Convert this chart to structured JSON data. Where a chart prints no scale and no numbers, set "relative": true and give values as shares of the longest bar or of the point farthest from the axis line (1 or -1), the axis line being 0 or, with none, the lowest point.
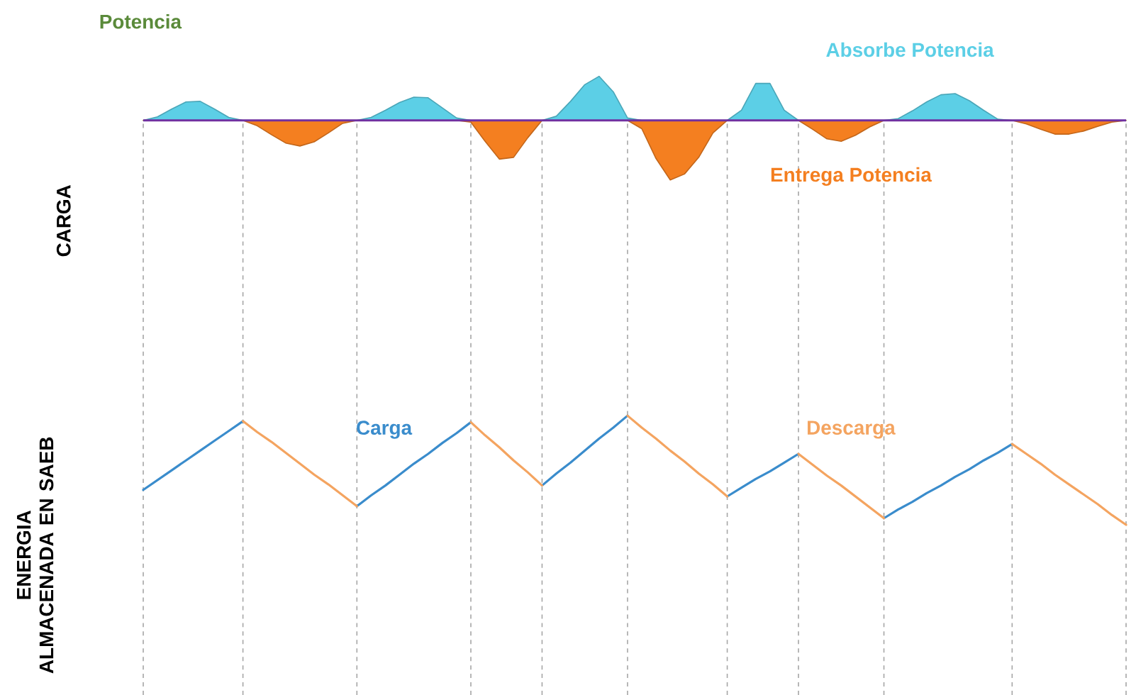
{
  "chart_data": [
    {
      "type": "area",
      "relative": true,
      "title": "Potencia",
      "ylabel": "CARGA",
      "grid": "x",
      "ref_lines": [
        {
          "axis": "y",
          "value": 0,
          "color": "#7030a0"
        }
      ],
      "categories": [
        null,
        null,
        null,
        null,
        null,
        null,
        null,
        null,
        null,
        null,
        null,
        null,
        null,
        null,
        null,
        null,
        null,
        null,
        null,
        null,
        null,
        null,
        null,
        null,
        null,
        null,
        null,
        null,
        null,
        null,
        null,
        null,
        null,
        null,
        null,
        null,
        null,
        null,
        null,
        null,
        null,
        null,
        null,
        null,
        null,
        null,
        null,
        null,
        null,
        null,
        null,
        null,
        null,
        null,
        null,
        null,
        null,
        null,
        null,
        null,
        null,
        null,
        null,
        null,
        null,
        null,
        null,
        null,
        null,
        null
      ],
      "series": [
        {
          "name": "Absorbe Potencia",
          "color": "#5ccfe6",
          "values": [
            0,
            0.06,
            0.19,
            0.31,
            0.32,
            0.19,
            0.05,
            0,
            0,
            0,
            0,
            0,
            0,
            0,
            0,
            0,
            0.05,
            0.17,
            0.3,
            0.39,
            0.38,
            0.21,
            0.04,
            0,
            0,
            0,
            0,
            0,
            0,
            0.07,
            0.32,
            0.6,
            0.74,
            0.48,
            0.04,
            0,
            0,
            0,
            0,
            0,
            0,
            0,
            0.17,
            0.62,
            0.62,
            0.17,
            0,
            0,
            0,
            0,
            0,
            0,
            0,
            0.03,
            0.16,
            0.31,
            0.43,
            0.45,
            0.33,
            0.17,
            0.02,
            0,
            0,
            0,
            0,
            0,
            0,
            0,
            0,
            0
          ]
        },
        {
          "name": "Entrega Potencia",
          "color": "#f47f20",
          "values": [
            0,
            0,
            0,
            0,
            0,
            0,
            0,
            0,
            -0.09,
            -0.24,
            -0.38,
            -0.43,
            -0.36,
            -0.21,
            -0.05,
            0,
            0,
            0,
            0,
            0,
            0,
            0,
            0,
            -0.03,
            -0.35,
            -0.65,
            -0.62,
            -0.29,
            0,
            0,
            0,
            0,
            0,
            0,
            0,
            -0.14,
            -0.64,
            -1,
            -0.9,
            -0.62,
            -0.21,
            0,
            0,
            0,
            0,
            0,
            0,
            -0.15,
            -0.31,
            -0.35,
            -0.25,
            -0.11,
            0,
            0,
            0,
            0,
            0,
            0,
            0,
            0,
            0,
            0,
            -0.06,
            -0.15,
            -0.23,
            -0.23,
            -0.18,
            -0.1,
            -0.03,
            0
          ]
        }
      ]
    },
    {
      "type": "line",
      "relative": true,
      "ylabel": "ENERGIA ALMACENADA EN SAEB",
      "grid": "x",
      "categories": [
        null,
        null,
        null,
        null,
        null,
        null,
        null,
        null,
        null,
        null,
        null,
        null,
        null,
        null,
        null,
        null,
        null,
        null,
        null,
        null,
        null,
        null,
        null,
        null,
        null,
        null,
        null,
        null,
        null,
        null,
        null,
        null,
        null,
        null,
        null,
        null,
        null,
        null,
        null,
        null,
        null,
        null,
        null,
        null,
        null,
        null,
        null,
        null,
        null,
        null,
        null,
        null,
        null,
        null,
        null,
        null,
        null,
        null,
        null,
        null,
        null,
        null,
        null,
        null,
        null,
        null,
        null,
        null,
        null,
        null
      ],
      "series": [
        {
          "name": "Carga",
          "color": "#3a8ccc",
          "values": [
            0.32,
            0.41,
            0.5,
            0.59,
            0.68,
            0.77,
            0.86,
            0.95,
            null,
            null,
            null,
            null,
            null,
            null,
            null,
            0.17,
            0.27,
            0.36,
            0.46,
            0.56,
            0.65,
            0.75,
            0.84,
            0.94,
            null,
            null,
            null,
            null,
            0.36,
            0.47,
            0.57,
            0.68,
            0.79,
            0.89,
            1,
            null,
            null,
            null,
            null,
            null,
            null,
            0.26,
            0.34,
            0.42,
            0.49,
            0.57,
            0.65,
            null,
            null,
            null,
            null,
            null,
            0.06,
            0.14,
            0.21,
            0.29,
            0.36,
            0.44,
            0.51,
            0.59,
            0.66,
            0.74,
            null,
            null,
            null,
            null,
            null,
            null,
            null,
            null
          ]
        },
        {
          "name": "Descarga",
          "color": "#f4a460",
          "values": [
            null,
            null,
            null,
            null,
            null,
            null,
            null,
            0.95,
            0.85,
            0.76,
            0.66,
            0.56,
            0.46,
            0.37,
            0.27,
            0.17,
            null,
            null,
            null,
            null,
            null,
            null,
            null,
            0.94,
            0.82,
            0.71,
            0.59,
            0.48,
            0.36,
            null,
            null,
            null,
            null,
            null,
            1,
            0.89,
            0.79,
            0.68,
            0.58,
            0.47,
            0.37,
            0.26,
            null,
            null,
            null,
            null,
            0.65,
            0.55,
            0.45,
            0.36,
            0.26,
            0.16,
            0.06,
            null,
            null,
            null,
            null,
            null,
            null,
            null,
            null,
            0.74,
            0.65,
            0.56,
            0.46,
            0.37,
            0.28,
            0.19,
            0.09,
            0
          ]
        }
      ]
    }
  ]
}
